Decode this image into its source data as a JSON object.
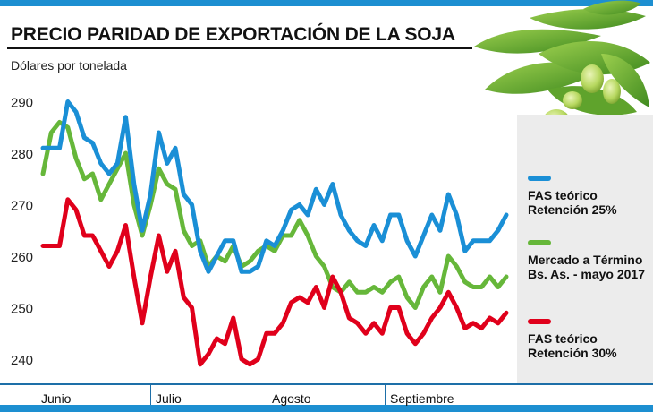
{
  "title": "PRECIO PARIDAD DE EXPORTACIÓN DE LA SOJA",
  "colors": {
    "accent": "#1d8fd1",
    "blue": "#1a8fd6",
    "green": "#66b73a",
    "red": "#e0001b"
  },
  "chart_data": {
    "type": "line",
    "title": "PRECIO PARIDAD DE EXPORTACIÓN DE LA SOJA",
    "ylabel": "Dólares por tonelada",
    "xlabel": "",
    "ylim": [
      235,
      295
    ],
    "y_ticks": [
      240,
      250,
      260,
      270,
      280,
      290
    ],
    "x_labels": [
      "Junio",
      "Julio",
      "Agosto",
      "Septiembre"
    ],
    "grid": false,
    "legend": "right",
    "series": [
      {
        "name": "FAS teórico Retención 25%",
        "color": "#1a8fd6",
        "values": [
          281,
          281,
          281,
          290,
          288,
          283,
          282,
          278,
          276,
          278,
          287,
          274,
          265,
          272,
          284,
          278,
          281,
          272,
          270,
          261,
          257,
          260,
          263,
          263,
          257,
          257,
          258,
          263,
          262,
          265,
          269,
          270,
          268,
          273,
          270,
          274,
          268,
          265,
          263,
          262,
          266,
          263,
          268,
          268,
          263,
          260,
          264,
          268,
          265,
          272,
          268,
          261,
          263,
          263,
          263,
          265,
          268
        ]
      },
      {
        "name": "Mercado a Término Bs. As. - mayo 2017",
        "color": "#66b73a",
        "values": [
          276,
          284,
          286,
          285,
          279,
          275,
          276,
          271,
          274,
          277,
          280,
          270,
          264,
          270,
          277,
          274,
          273,
          265,
          262,
          263,
          258,
          260,
          259,
          262,
          258,
          259,
          261,
          262,
          261,
          264,
          264,
          267,
          264,
          260,
          258,
          254,
          253,
          255,
          253,
          253,
          254,
          253,
          255,
          256,
          252,
          250,
          254,
          256,
          253,
          260,
          258,
          255,
          254,
          254,
          256,
          254,
          256
        ]
      },
      {
        "name": "FAS teórico Retención 30%",
        "color": "#e0001b",
        "values": [
          262,
          262,
          262,
          271,
          269,
          264,
          264,
          261,
          258,
          261,
          266,
          256,
          247,
          256,
          264,
          257,
          261,
          252,
          250,
          239,
          241,
          244,
          243,
          248,
          240,
          239,
          240,
          245,
          245,
          247,
          251,
          252,
          251,
          254,
          250,
          256,
          253,
          248,
          247,
          245,
          247,
          245,
          250,
          250,
          245,
          243,
          245,
          248,
          250,
          253,
          250,
          246,
          247,
          246,
          248,
          247,
          249
        ]
      }
    ]
  }
}
